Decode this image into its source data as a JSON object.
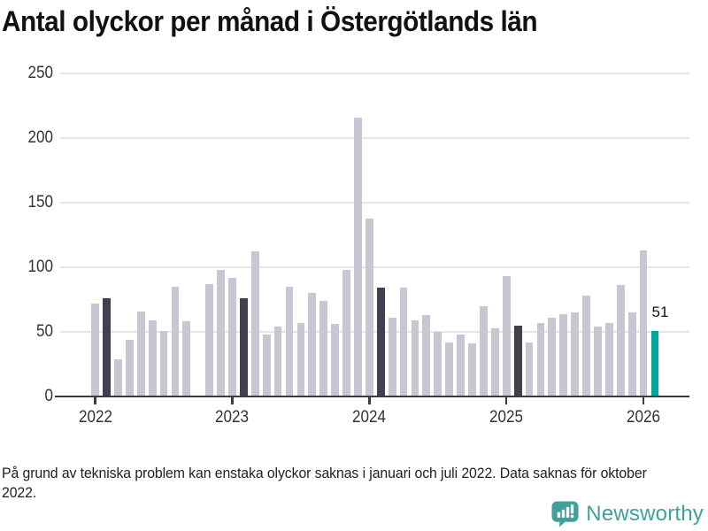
{
  "page": {
    "title": "Antal olyckor per månad i Östergötlands län",
    "footnote": "På grund av tekniska problem kan enstaka olyckor saknas i januari och juli 2022. Data saknas för oktober 2022."
  },
  "branding": {
    "name": "Newsworthy",
    "icon": "newsworthy-speech-bubble-chart-icon",
    "color": "#42a09a"
  },
  "colors": {
    "bar_base": "#c9c6d3",
    "bar_highlight_dark": "#423f4e",
    "bar_current_teal": "#00a69b",
    "gridline": "#e5e5e5",
    "axis": "#3c3b45",
    "tick_text": "#333333",
    "annotation_text": "#111111"
  },
  "chart_data": {
    "type": "bar",
    "title": "Antal olyckor per månad i Östergötlands län",
    "xlabel": "",
    "ylabel": "",
    "ylim": [
      0,
      250
    ],
    "yticks": [
      0,
      50,
      100,
      150,
      200,
      250
    ],
    "xtick_labels": [
      "2022",
      "2023",
      "2024",
      "2025",
      "2026"
    ],
    "xtick_month_indices": [
      0,
      12,
      24,
      36,
      48
    ],
    "grid": true,
    "legend": false,
    "missing": [
      "2022-10"
    ],
    "annotation": {
      "month": "2026-02",
      "text": "51"
    },
    "bars": [
      {
        "m": "2022-01",
        "v": 72,
        "role": "base"
      },
      {
        "m": "2022-02",
        "v": 76,
        "role": "dark"
      },
      {
        "m": "2022-03",
        "v": 29,
        "role": "base"
      },
      {
        "m": "2022-04",
        "v": 44,
        "role": "base"
      },
      {
        "m": "2022-05",
        "v": 66,
        "role": "base"
      },
      {
        "m": "2022-06",
        "v": 59,
        "role": "base"
      },
      {
        "m": "2022-07",
        "v": 51,
        "role": "base"
      },
      {
        "m": "2022-08",
        "v": 85,
        "role": "base"
      },
      {
        "m": "2022-09",
        "v": 58,
        "role": "base"
      },
      {
        "m": "2022-10",
        "v": null,
        "role": "missing"
      },
      {
        "m": "2022-11",
        "v": 87,
        "role": "base"
      },
      {
        "m": "2022-12",
        "v": 98,
        "role": "base"
      },
      {
        "m": "2023-01",
        "v": 92,
        "role": "base"
      },
      {
        "m": "2023-02",
        "v": 76,
        "role": "dark"
      },
      {
        "m": "2023-03",
        "v": 112,
        "role": "base"
      },
      {
        "m": "2023-04",
        "v": 48,
        "role": "base"
      },
      {
        "m": "2023-05",
        "v": 54,
        "role": "base"
      },
      {
        "m": "2023-06",
        "v": 85,
        "role": "base"
      },
      {
        "m": "2023-07",
        "v": 57,
        "role": "base"
      },
      {
        "m": "2023-08",
        "v": 80,
        "role": "base"
      },
      {
        "m": "2023-09",
        "v": 74,
        "role": "base"
      },
      {
        "m": "2023-10",
        "v": 56,
        "role": "base"
      },
      {
        "m": "2023-11",
        "v": 98,
        "role": "base"
      },
      {
        "m": "2023-12",
        "v": 216,
        "role": "base"
      },
      {
        "m": "2024-01",
        "v": 138,
        "role": "base"
      },
      {
        "m": "2024-02",
        "v": 84,
        "role": "dark"
      },
      {
        "m": "2024-03",
        "v": 61,
        "role": "base"
      },
      {
        "m": "2024-04",
        "v": 84,
        "role": "base"
      },
      {
        "m": "2024-05",
        "v": 59,
        "role": "base"
      },
      {
        "m": "2024-06",
        "v": 63,
        "role": "base"
      },
      {
        "m": "2024-07",
        "v": 50,
        "role": "base"
      },
      {
        "m": "2024-08",
        "v": 42,
        "role": "base"
      },
      {
        "m": "2024-09",
        "v": 48,
        "role": "base"
      },
      {
        "m": "2024-10",
        "v": 41,
        "role": "base"
      },
      {
        "m": "2024-11",
        "v": 70,
        "role": "base"
      },
      {
        "m": "2024-12",
        "v": 53,
        "role": "base"
      },
      {
        "m": "2025-01",
        "v": 93,
        "role": "base"
      },
      {
        "m": "2025-02",
        "v": 55,
        "role": "dark"
      },
      {
        "m": "2025-03",
        "v": 42,
        "role": "base"
      },
      {
        "m": "2025-04",
        "v": 57,
        "role": "base"
      },
      {
        "m": "2025-05",
        "v": 61,
        "role": "base"
      },
      {
        "m": "2025-06",
        "v": 64,
        "role": "base"
      },
      {
        "m": "2025-07",
        "v": 65,
        "role": "base"
      },
      {
        "m": "2025-08",
        "v": 78,
        "role": "base"
      },
      {
        "m": "2025-09",
        "v": 54,
        "role": "base"
      },
      {
        "m": "2025-10",
        "v": 57,
        "role": "base"
      },
      {
        "m": "2025-11",
        "v": 86,
        "role": "base"
      },
      {
        "m": "2025-12",
        "v": 65,
        "role": "base"
      },
      {
        "m": "2026-01",
        "v": 113,
        "role": "base"
      },
      {
        "m": "2026-02",
        "v": 51,
        "role": "current"
      }
    ]
  }
}
